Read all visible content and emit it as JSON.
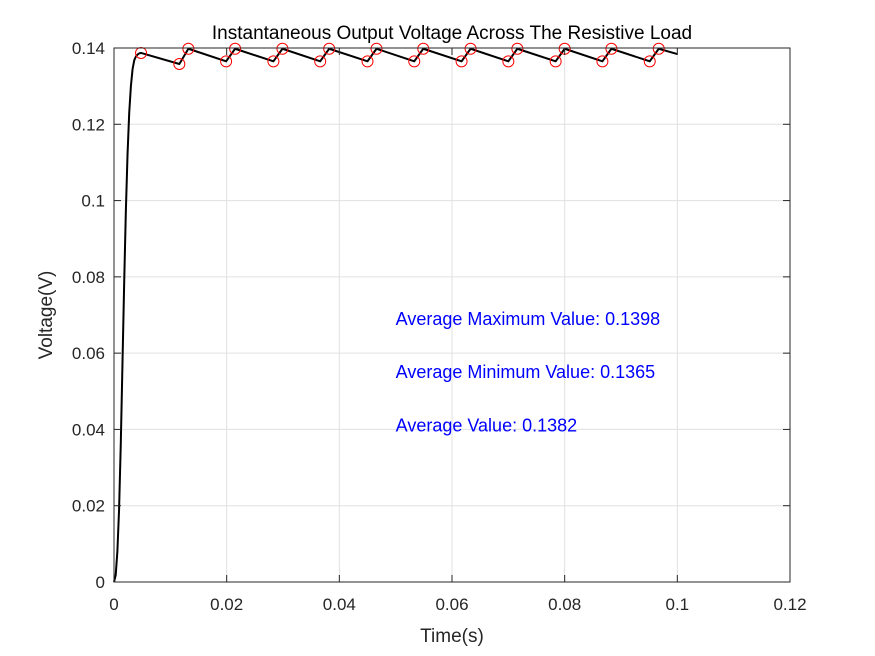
{
  "chart_data": {
    "type": "line",
    "title": "Instantaneous Output Voltage Across The Resistive Load",
    "xlabel": "Time(s)",
    "ylabel": "Voltage(V)",
    "xlim": [
      0,
      0.12
    ],
    "ylim": [
      0,
      0.14
    ],
    "xticks": [
      "0",
      "0.02",
      "0.04",
      "0.06",
      "0.08",
      "0.1",
      "0.12"
    ],
    "yticks": [
      "0",
      "0.02",
      "0.04",
      "0.06",
      "0.08",
      "0.1",
      "0.12",
      "0.14"
    ],
    "grid": true,
    "series": [
      {
        "color": "#000000",
        "x": [
          0,
          0.0003,
          0.0006,
          0.0009,
          0.0012,
          0.0015,
          0.0018,
          0.0021,
          0.0024,
          0.0027,
          0.003,
          0.0033,
          0.0036,
          0.0039,
          0.0042,
          0.0045,
          0.0048,
          0.0116,
          0.0132,
          0.0199,
          0.0215,
          0.0283,
          0.0299,
          0.0366,
          0.0382,
          0.045,
          0.0466,
          0.0533,
          0.0549,
          0.0617,
          0.0633,
          0.07,
          0.0716,
          0.0784,
          0.08,
          0.0867,
          0.0883,
          0.0951,
          0.0967,
          0.1
        ],
        "y": [
          0,
          0.0018,
          0.008,
          0.019,
          0.036,
          0.057,
          0.078,
          0.097,
          0.112,
          0.123,
          0.13,
          0.1345,
          0.1368,
          0.1378,
          0.1383,
          0.1386,
          0.1387,
          0.1358,
          0.1398,
          0.1365,
          0.1398,
          0.1365,
          0.1398,
          0.1365,
          0.1398,
          0.1365,
          0.1398,
          0.1365,
          0.1398,
          0.1365,
          0.1398,
          0.1365,
          0.1398,
          0.1365,
          0.1398,
          0.1365,
          0.1398,
          0.1365,
          0.1398,
          0.1384
        ]
      }
    ],
    "markers": {
      "color": "#ff0000",
      "shape": "circle",
      "peaks": [
        [
          0.0048,
          0.1387
        ],
        [
          0.0132,
          0.1398
        ],
        [
          0.0215,
          0.1398
        ],
        [
          0.0299,
          0.1398
        ],
        [
          0.0382,
          0.1398
        ],
        [
          0.0466,
          0.1398
        ],
        [
          0.0549,
          0.1398
        ],
        [
          0.0633,
          0.1398
        ],
        [
          0.0716,
          0.1398
        ],
        [
          0.08,
          0.1398
        ],
        [
          0.0883,
          0.1398
        ],
        [
          0.0967,
          0.1398
        ]
      ],
      "troughs": [
        [
          0.0116,
          0.1358
        ],
        [
          0.0199,
          0.1365
        ],
        [
          0.0283,
          0.1365
        ],
        [
          0.0366,
          0.1365
        ],
        [
          0.045,
          0.1365
        ],
        [
          0.0533,
          0.1365
        ],
        [
          0.0617,
          0.1365
        ],
        [
          0.07,
          0.1365
        ],
        [
          0.0784,
          0.1365
        ],
        [
          0.0867,
          0.1365
        ],
        [
          0.0951,
          0.1365
        ]
      ]
    },
    "annotations": [
      {
        "text": "Average Maximum Value: 0.1398",
        "x": 0.05,
        "y": 0.069,
        "color": "#0000ff"
      },
      {
        "text": "Average Minimum Value: 0.1365",
        "x": 0.05,
        "y": 0.055,
        "color": "#0000ff"
      },
      {
        "text": "Average Value: 0.1382",
        "x": 0.05,
        "y": 0.041,
        "color": "#0000ff"
      }
    ]
  }
}
